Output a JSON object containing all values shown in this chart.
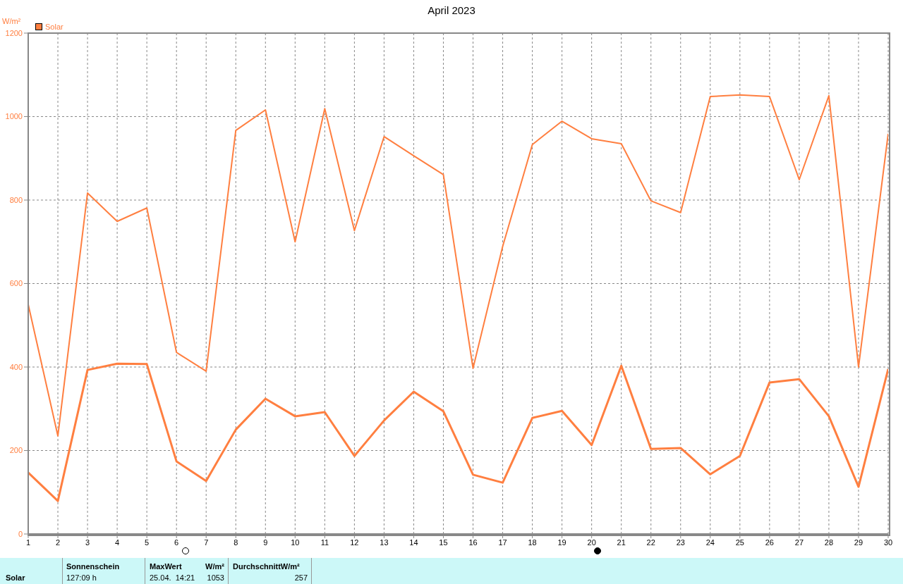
{
  "chart_data": {
    "type": "line",
    "title": "April 2023",
    "ylabel": "W/m²",
    "x": [
      1,
      2,
      3,
      4,
      5,
      6,
      7,
      8,
      9,
      10,
      11,
      12,
      13,
      14,
      15,
      16,
      17,
      18,
      19,
      20,
      21,
      22,
      23,
      24,
      25,
      26,
      27,
      28,
      29,
      30
    ],
    "series": [
      {
        "name": "Solar",
        "color": "#ff7f40",
        "values": [
          550,
          235,
          817,
          749,
          781,
          435,
          390,
          967,
          1016,
          700,
          1019,
          727,
          952,
          906,
          861,
          397,
          689,
          933,
          989,
          947,
          935,
          798,
          770,
          1048,
          1052,
          1048,
          849,
          1050,
          400,
          959
        ]
      },
      {
        "color": "#ff7f40",
        "values": [
          147,
          79,
          393,
          408,
          407,
          174,
          127,
          250,
          324,
          282,
          292,
          187,
          272,
          341,
          294,
          142,
          123,
          278,
          295,
          213,
          403,
          204,
          206,
          143,
          187,
          363,
          371,
          282,
          113,
          395
        ]
      }
    ],
    "xlim": [
      1,
      30
    ],
    "xticks": [
      1,
      2,
      3,
      4,
      5,
      6,
      7,
      8,
      9,
      10,
      11,
      12,
      13,
      14,
      15,
      16,
      17,
      18,
      19,
      20,
      21,
      22,
      23,
      24,
      25,
      26,
      27,
      28,
      29,
      30
    ],
    "ylim": [
      0,
      1200
    ],
    "yticks": [
      0,
      200,
      400,
      600,
      800,
      1000,
      1200
    ],
    "grid": true,
    "legend": "top left",
    "marker": "none",
    "line_style": "solid",
    "annotations": [
      "Solar",
      "Sonnenschein",
      "127:09 h",
      "MaxWert",
      "W/m²",
      "25.04.  14:21",
      "1053",
      "DurchschnittW/m²",
      "257"
    ]
  }
}
